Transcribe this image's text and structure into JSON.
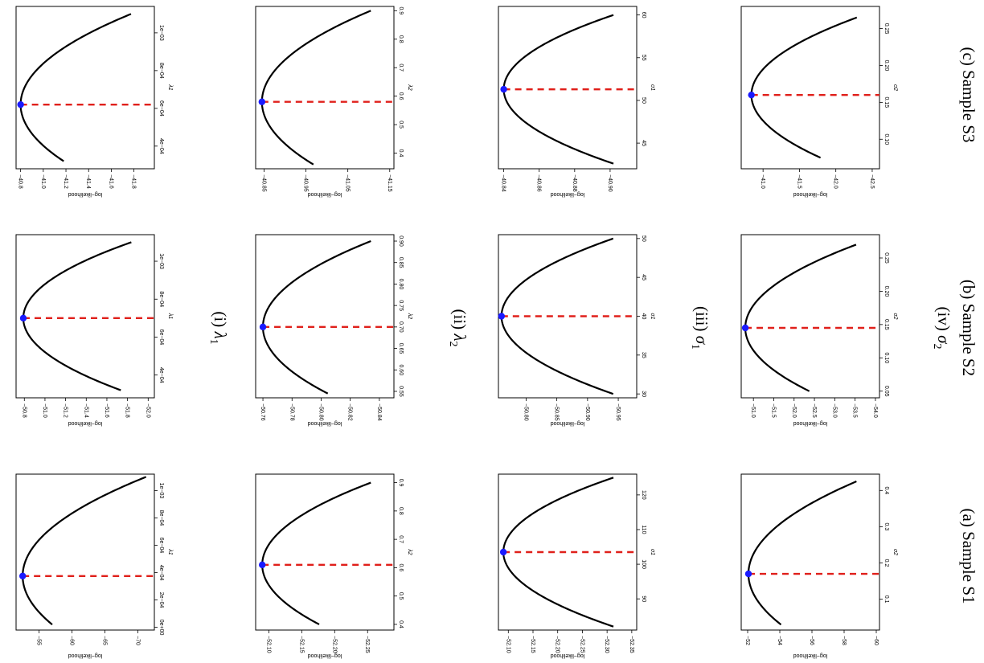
{
  "figure": {
    "row_captions": [
      {
        "id": "i",
        "label": "(i)",
        "symbol": "λ",
        "sub": "1"
      },
      {
        "id": "ii",
        "label": "(ii)",
        "symbol": "λ",
        "sub": "2"
      },
      {
        "id": "iii",
        "label": "(iii)",
        "symbol": "σ",
        "sub": "1"
      },
      {
        "id": "iv",
        "label": "(iv)",
        "symbol": "σ",
        "sub": "2"
      }
    ],
    "col_captions": [
      "(a) Sample S1",
      "(b) Sample S2",
      "(c) Sample S3"
    ]
  },
  "chart_data": [
    {
      "type": "line",
      "sample": "S1",
      "param": "λ1",
      "xlabel": "λ1",
      "ylabel": "log−likelihood",
      "xlim": [
        -2e-05,
        0.00112
      ],
      "xticks": [
        0,
        0.0002,
        0.0004,
        0.0006,
        0.0008,
        0.001
      ],
      "xticklabels": [
        "0e+00",
        "2e−04",
        "4e−04",
        "6e−04",
        "8e−04",
        "1e−03"
      ],
      "ylim": [
        -72.5,
        -51.5
      ],
      "yticks": [
        -55,
        -60,
        -65,
        -70
      ],
      "yticklabels": [
        "−55",
        "−60",
        "−65",
        "−70"
      ],
      "x_range": [
        2e-05,
        0.0011
      ],
      "mle": [
        0.000375,
        -52.5
      ],
      "curve_k": 0.62
    },
    {
      "type": "line",
      "sample": "S2",
      "param": "λ1",
      "xlabel": "λ1",
      "ylabel": "log−likelihood",
      "xlim": [
        0.00028,
        0.00114
      ],
      "xticks": [
        0.0004,
        0.0006,
        0.0008,
        0.001
      ],
      "xticklabels": [
        "4e−04",
        "6e−04",
        "8e−04",
        "1e−03"
      ],
      "ylim": [
        -52.06,
        -50.72
      ],
      "yticks": [
        -50.8,
        -51.0,
        -51.2,
        -51.4,
        -51.6,
        -51.8,
        -52.0
      ],
      "yticklabels": [
        "−50.8",
        "−51.0",
        "−51.2",
        "−51.4",
        "−51.6",
        "−51.8",
        "−52.0"
      ],
      "x_range": [
        0.00032,
        0.0011
      ],
      "mle": [
        0.0007,
        -50.79
      ],
      "curve_k": 0.5
    },
    {
      "type": "line",
      "sample": "S3",
      "param": "λ1",
      "xlabel": "λ1",
      "ylabel": "log−likelihood",
      "xlim": [
        0.00028,
        0.00114
      ],
      "xticks": [
        0.0004,
        0.0006,
        0.0008,
        0.001
      ],
      "xticklabels": [
        "4e−04",
        "6e−04",
        "8e−04",
        "1e−03"
      ],
      "ylim": [
        -41.98,
        -40.76
      ],
      "yticks": [
        -40.8,
        -41.0,
        -41.2,
        -41.4,
        -41.6,
        -41.8
      ],
      "yticklabels": [
        "−40.8",
        "−41.0",
        "−41.2",
        "−41.4",
        "−41.6",
        "−41.8"
      ],
      "x_range": [
        0.00032,
        0.0011
      ],
      "mle": [
        0.00062,
        -40.8
      ],
      "curve_k": 0.5
    },
    {
      "type": "line",
      "sample": "S1",
      "param": "λ2",
      "xlabel": "λ2",
      "ylabel": "log−likelihood",
      "xlim": [
        0.38,
        0.93
      ],
      "xticks": [
        0.4,
        0.5,
        0.6,
        0.7,
        0.8,
        0.9
      ],
      "xticklabels": [
        "0.4",
        "0.5",
        "0.6",
        "0.7",
        "0.8",
        "0.9"
      ],
      "ylim": [
        -52.29,
        -52.08
      ],
      "yticks": [
        -52.1,
        -52.15,
        -52.2,
        -52.25
      ],
      "yticklabels": [
        "−52.10",
        "−52.15",
        "−52.20",
        "−52.25"
      ],
      "x_range": [
        0.4,
        0.9
      ],
      "mle": [
        0.61,
        -52.09
      ],
      "curve_k": 0.5
    },
    {
      "type": "line",
      "sample": "S2",
      "param": "λ2",
      "xlabel": "λ2",
      "ylabel": "log−likelihood",
      "xlim": [
        0.535,
        0.915
      ],
      "xticks": [
        0.55,
        0.6,
        0.65,
        0.7,
        0.75,
        0.8,
        0.85,
        0.9
      ],
      "xticklabels": [
        "0.55",
        "0.60",
        "0.65",
        "0.70",
        "0.75",
        "0.80",
        "0.85",
        "0.90"
      ],
      "ylim": [
        -50.85,
        -50.755
      ],
      "yticks": [
        -50.76,
        -50.78,
        -50.8,
        -50.82,
        -50.84
      ],
      "yticklabels": [
        "−50.76",
        "−50.78",
        "−50.80",
        "−50.82",
        "−50.84"
      ],
      "x_range": [
        0.545,
        0.9
      ],
      "mle": [
        0.7,
        -50.76
      ],
      "curve_k": 0.5
    },
    {
      "type": "line",
      "sample": "S3",
      "param": "λ2",
      "xlabel": "λ2",
      "ylabel": "log−likelihood",
      "xlim": [
        0.345,
        0.915
      ],
      "xticks": [
        0.4,
        0.5,
        0.6,
        0.7,
        0.8,
        0.9
      ],
      "xticklabels": [
        "0.4",
        "0.5",
        "0.6",
        "0.7",
        "0.8",
        "0.9"
      ],
      "ylim": [
        -41.16,
        -40.83
      ],
      "yticks": [
        -40.85,
        -40.95,
        -41.05,
        -41.15
      ],
      "yticklabels": [
        "−40.85",
        "−40.95",
        "−41.05",
        "−41.15"
      ],
      "x_range": [
        0.36,
        0.9
      ],
      "mle": [
        0.58,
        -40.845
      ],
      "curve_k": 0.5
    },
    {
      "type": "line",
      "sample": "S1",
      "param": "σ1",
      "xlabel": "σ1",
      "ylabel": "log−likelihood",
      "xlim": [
        81,
        126
      ],
      "xticks": [
        90,
        100,
        110,
        120
      ],
      "xticklabels": [
        "90",
        "100",
        "110",
        "120"
      ],
      "ylim": [
        -52.36,
        -52.08
      ],
      "yticks": [
        -52.1,
        -52.15,
        -52.2,
        -52.25,
        -52.3,
        -52.35
      ],
      "yticklabels": [
        "−52.10",
        "−52.15",
        "−52.20",
        "−52.25",
        "−52.30",
        "−52.35"
      ],
      "x_range": [
        82,
        125
      ],
      "mle": [
        103.5,
        -52.09
      ],
      "curve_k": 0.5
    },
    {
      "type": "line",
      "sample": "S2",
      "param": "σ1",
      "xlabel": "σ1",
      "ylabel": "log−likelihood",
      "xlim": [
        29.5,
        50.5
      ],
      "xticks": [
        30,
        35,
        40,
        45,
        50
      ],
      "xticklabels": [
        "30",
        "35",
        "40",
        "45",
        "50"
      ],
      "ylim": [
        -50.98,
        -50.755
      ],
      "yticks": [
        -50.8,
        -50.85,
        -50.9,
        -50.95
      ],
      "yticklabels": [
        "−50.80",
        "−50.85",
        "−50.90",
        "−50.95"
      ],
      "x_range": [
        30,
        50
      ],
      "mle": [
        40,
        -50.76
      ],
      "curve_k": 0.5
    },
    {
      "type": "line",
      "sample": "S3",
      "param": "σ1",
      "xlabel": "σ1",
      "ylabel": "log−likelihood",
      "xlim": [
        42,
        61
      ],
      "xticks": [
        45,
        50,
        55,
        60
      ],
      "xticklabels": [
        "45",
        "50",
        "55",
        "60"
      ],
      "ylim": [
        -40.915,
        -40.837
      ],
      "yticks": [
        -40.84,
        -40.86,
        -40.88,
        -40.9
      ],
      "yticklabels": [
        "−40.84",
        "−40.86",
        "−40.88",
        "−40.90"
      ],
      "x_range": [
        42.6,
        60
      ],
      "mle": [
        51.3,
        -40.84
      ],
      "curve_k": 0.5
    },
    {
      "type": "line",
      "sample": "S1",
      "param": "σ2",
      "xlabel": "σ2",
      "ylabel": "log−likelihood",
      "xlim": [
        0.015,
        0.445
      ],
      "xticks": [
        0.1,
        0.2,
        0.3,
        0.4
      ],
      "xticklabels": [
        "0.1",
        "0.2",
        "0.3",
        "0.4"
      ],
      "ylim": [
        -60.2,
        -51.6
      ],
      "yticks": [
        -52,
        -54,
        -56,
        -58,
        -60
      ],
      "yticklabels": [
        "−52",
        "−54",
        "−56",
        "−58",
        "−60"
      ],
      "x_range": [
        0.03,
        0.425
      ],
      "mle": [
        0.17,
        -52.05
      ],
      "curve_k": 0.5
    },
    {
      "type": "line",
      "sample": "S2",
      "param": "σ2",
      "xlabel": "σ2",
      "ylabel": "log−likelihood",
      "xlim": [
        0.04,
        0.285
      ],
      "xticks": [
        0.05,
        0.1,
        0.15,
        0.2,
        0.25
      ],
      "xticklabels": [
        "0.05",
        "0.10",
        "0.15",
        "0.20",
        "0.25"
      ],
      "ylim": [
        -54.1,
        -50.7
      ],
      "yticks": [
        -51,
        -51.5,
        -52,
        -52.5,
        -53,
        -53.5,
        -54
      ],
      "yticklabels": [
        "−51.0",
        "−51.5",
        "−52.0",
        "−52.5",
        "−53.0",
        "−53.5",
        "−54.0"
      ],
      "x_range": [
        0.05,
        0.27
      ],
      "mle": [
        0.145,
        -50.8
      ],
      "curve_k": 0.5
    },
    {
      "type": "line",
      "sample": "S3",
      "param": "σ2",
      "xlabel": "σ2",
      "ylabel": "log−likelihood",
      "xlim": [
        0.06,
        0.28
      ],
      "xticks": [
        0.1,
        0.15,
        0.2,
        0.25
      ],
      "xticklabels": [
        "0.10",
        "0.15",
        "0.20",
        "0.25"
      ],
      "ylim": [
        -42.6,
        -40.7
      ],
      "yticks": [
        -41.0,
        -41.5,
        -42.0,
        -42.5
      ],
      "yticklabels": [
        "−41.0",
        "−41.5",
        "−42.0",
        "−42.5"
      ],
      "x_range": [
        0.075,
        0.265
      ],
      "mle": [
        0.16,
        -40.84
      ],
      "curve_k": 0.5
    }
  ]
}
